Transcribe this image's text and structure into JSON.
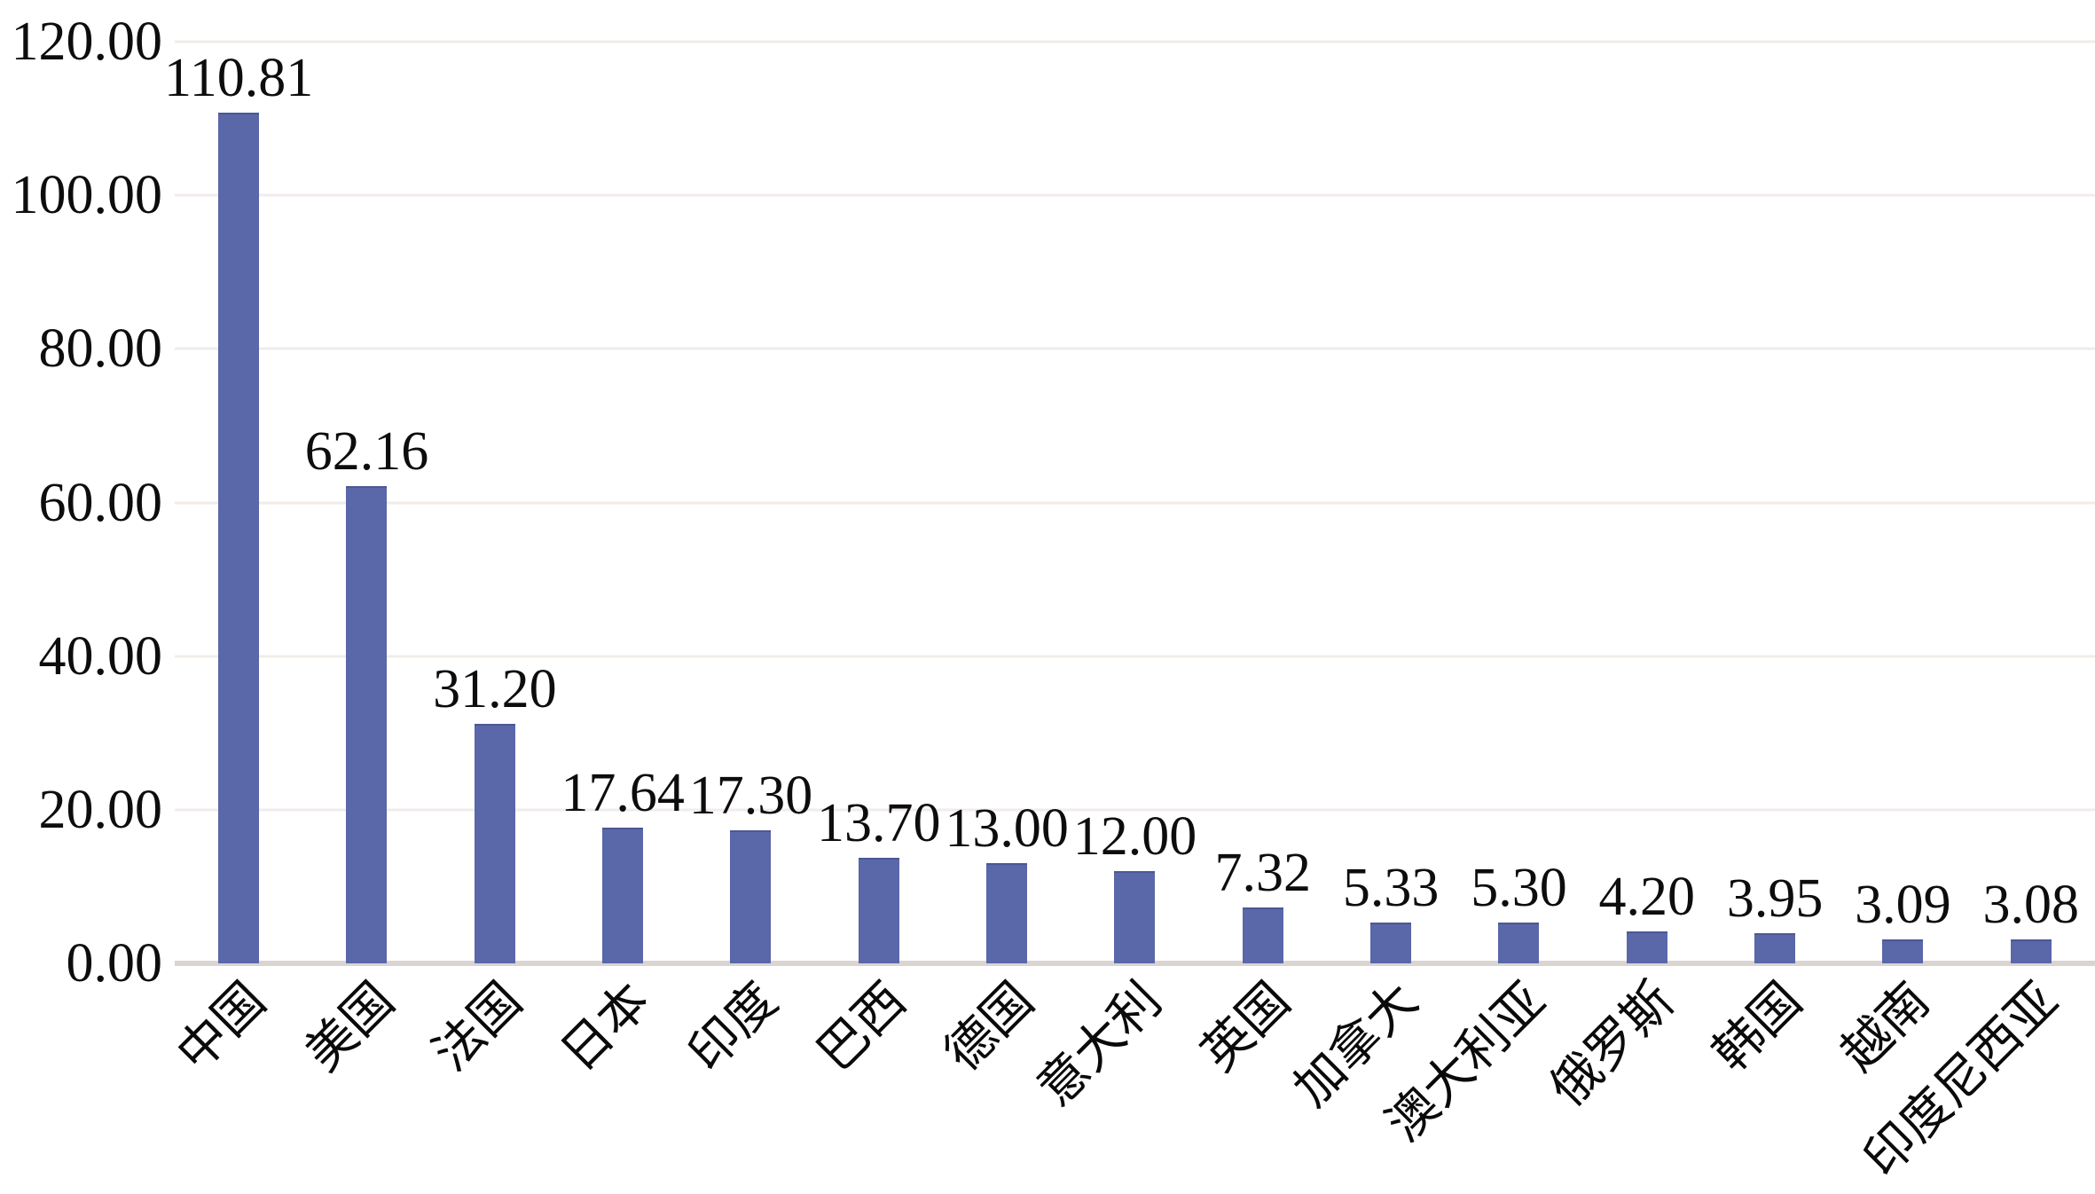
{
  "chart_data": {
    "type": "bar",
    "title": "",
    "xlabel": "",
    "ylabel": "",
    "categories": [
      "中国",
      "美国",
      "法国",
      "日本",
      "印度",
      "巴西",
      "德国",
      "意大利",
      "英国",
      "加拿大",
      "澳大利亚",
      "俄罗斯",
      "韩国",
      "越南",
      "印度尼西亚"
    ],
    "values": [
      110.81,
      62.16,
      31.2,
      17.64,
      17.3,
      13.7,
      13.0,
      12.0,
      7.32,
      5.33,
      5.3,
      4.2,
      3.95,
      3.09,
      3.08
    ],
    "value_labels": [
      "110.81",
      "62.16",
      "31.20",
      "17.64",
      "17.30",
      "13.70",
      "13.00",
      "12.00",
      "7.32",
      "5.33",
      "5.30",
      "4.20",
      "3.95",
      "3.09",
      "3.08"
    ],
    "ylim": [
      0,
      120
    ],
    "yticks": [
      {
        "value": 0,
        "label": "0.00"
      },
      {
        "value": 20,
        "label": "20.00"
      },
      {
        "value": 40,
        "label": "40.00"
      },
      {
        "value": 60,
        "label": "60.00"
      },
      {
        "value": 80,
        "label": "80.00"
      },
      {
        "value": 100,
        "label": "100.00"
      },
      {
        "value": 120,
        "label": "120.00"
      }
    ],
    "grid": true,
    "legend": "none",
    "xtick_rotation_deg": 45,
    "colors": {
      "bar": "#5a67a8",
      "bar_edge": "#4b5894",
      "gridline": "#f2ece9",
      "axis_line": "#dad5d2",
      "text": "#0d0d0d",
      "background": "#ffffff"
    }
  }
}
